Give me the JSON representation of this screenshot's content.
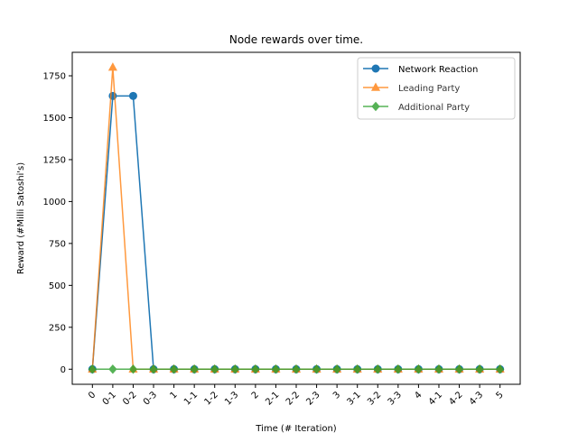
{
  "chart_data": {
    "type": "line",
    "title": "Node rewards over time.",
    "xlabel": "Time (# Iteration)",
    "ylabel": "Reward (#Milli Satoshi's)",
    "categories": [
      "0",
      "0-1",
      "0-2",
      "0-3",
      "1",
      "1-1",
      "1-2",
      "1-3",
      "2",
      "2-1",
      "2-2",
      "2-3",
      "3",
      "3-1",
      "3-2",
      "3-3",
      "4",
      "4-1",
      "4-2",
      "4-3",
      "5"
    ],
    "ylim": [
      -90,
      1890
    ],
    "yticks": [
      0,
      250,
      500,
      750,
      1000,
      1250,
      1500,
      1750
    ],
    "legend_position": "top-right",
    "grid": false,
    "series": [
      {
        "name": "Network Reaction",
        "color": "#1f77b4",
        "marker": "circle",
        "values": [
          0,
          1630,
          1630,
          0,
          0,
          0,
          0,
          0,
          0,
          0,
          0,
          0,
          0,
          0,
          0,
          0,
          0,
          0,
          0,
          0,
          0
        ]
      },
      {
        "name": "Leading Party",
        "color": "#ff7f0e",
        "marker": "triangle",
        "values": [
          0,
          1800,
          0,
          0,
          0,
          0,
          0,
          0,
          0,
          0,
          0,
          0,
          0,
          0,
          0,
          0,
          0,
          0,
          0,
          0,
          0
        ]
      },
      {
        "name": "Additional Party",
        "color": "#2ca02c",
        "marker": "diamond",
        "values": [
          0,
          0,
          0,
          0,
          0,
          0,
          0,
          0,
          0,
          0,
          0,
          0,
          0,
          0,
          0,
          0,
          0,
          0,
          0,
          0,
          0
        ]
      }
    ]
  }
}
